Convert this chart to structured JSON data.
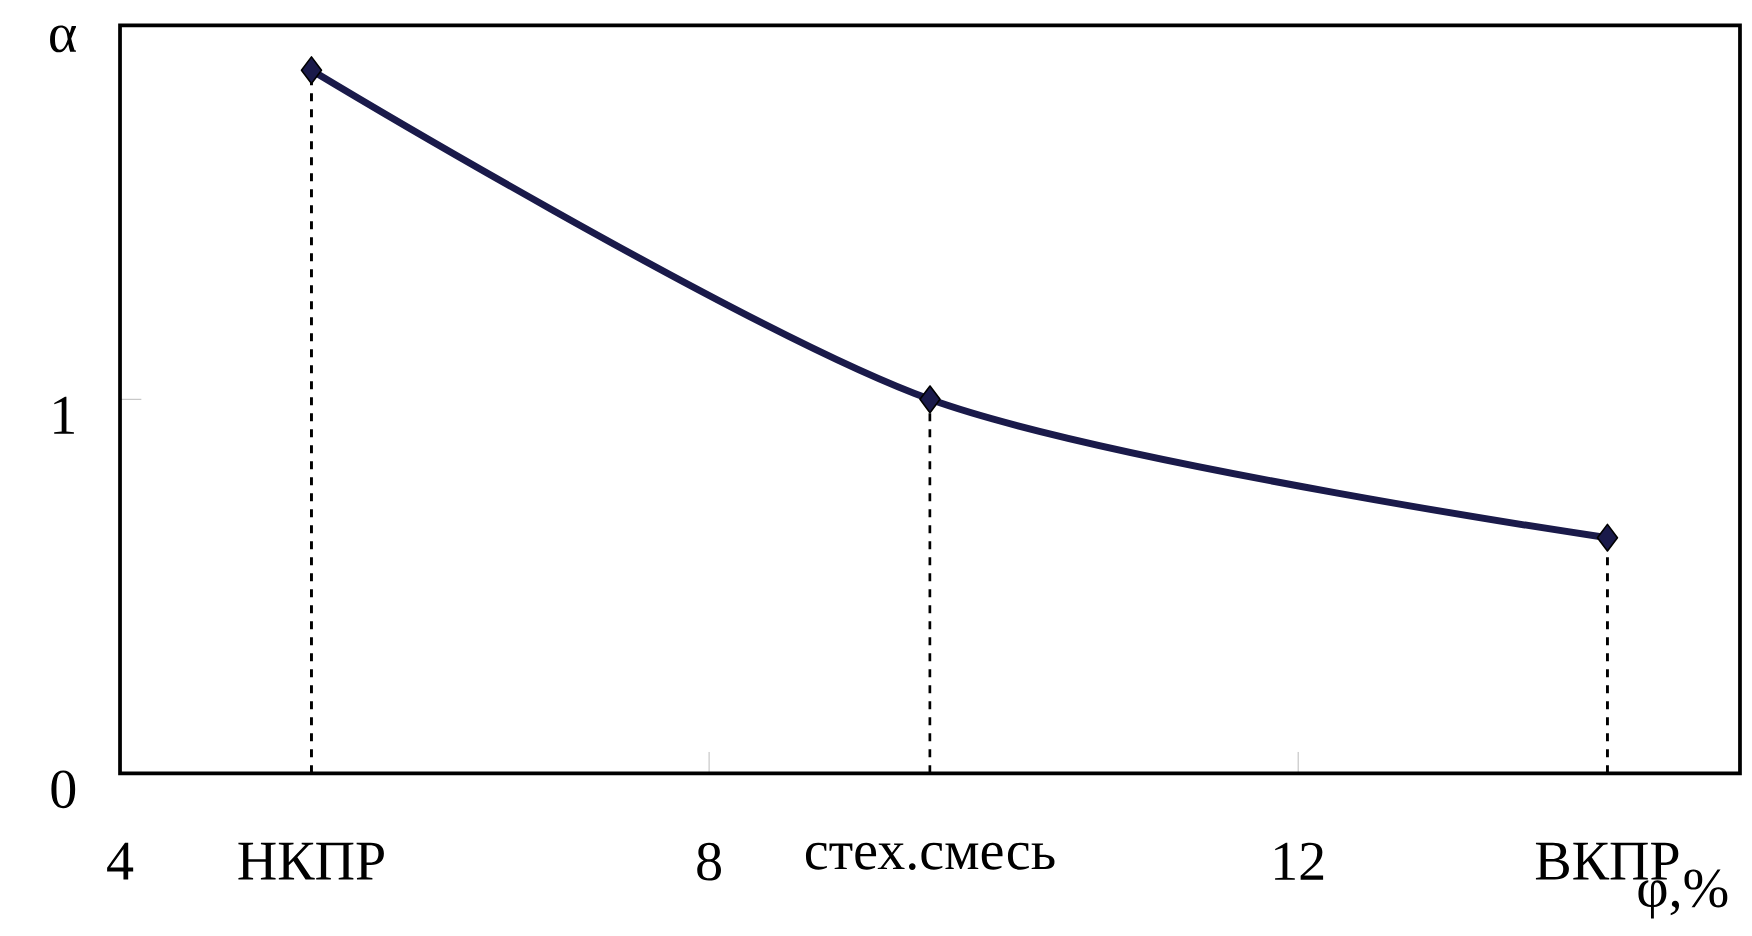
{
  "chart_data": {
    "type": "line",
    "xlabel": "φ,%",
    "ylabel": "α",
    "x": [
      5.3,
      9.5,
      14.1
    ],
    "series": [
      {
        "color": "#1a1a4a",
        "values": [
          1.88,
          1.0,
          0.63
        ]
      }
    ],
    "xlim": [
      4,
      15
    ],
    "ylim": [
      0,
      2
    ],
    "xticks": [
      4,
      8,
      12,
      {
        "value": 5.3,
        "label": "НКПР"
      },
      {
        "value": 9.5,
        "label": "стех.смесь"
      },
      {
        "value": 14.1,
        "label": "ВКПР"
      }
    ],
    "yticks": [
      0,
      1
    ],
    "ref_lines": [
      {
        "axis": "x",
        "value": 5.3,
        "line_style": "dashed"
      },
      {
        "axis": "x",
        "value": 9.5,
        "line_style": "dashed"
      },
      {
        "axis": "x",
        "value": 14.1,
        "line_style": "dashed"
      }
    ],
    "marker": "diamond",
    "line_style": "solid",
    "grid": false
  }
}
